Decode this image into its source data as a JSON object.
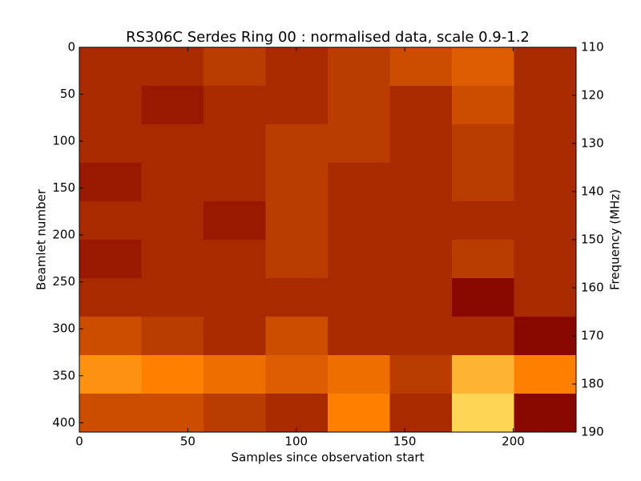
{
  "chart_data": {
    "type": "heatmap",
    "title": "RS306C Serdes Ring 00 : normalised data, scale 0.9-1.2",
    "x_label": "Samples since observation start",
    "y_label": "Beamlet number",
    "y2_label": "Frequency (MHz)",
    "colormap": "afmhot",
    "clim": [
      0.9,
      1.2
    ],
    "xlim": [
      0,
      229
    ],
    "ylim": [
      410,
      0
    ],
    "y2lim": [
      190,
      110
    ],
    "xticks": [
      0,
      50,
      100,
      150,
      200
    ],
    "yticks": [
      0,
      50,
      100,
      150,
      200,
      250,
      300,
      350,
      400
    ],
    "y2ticks": [
      110,
      120,
      130,
      140,
      150,
      160,
      170,
      180,
      190
    ],
    "z": [
      [
        1.0,
        1.0,
        1.01,
        1.0,
        1.01,
        1.02,
        1.03,
        1.0
      ],
      [
        1.0,
        0.99,
        1.0,
        1.0,
        1.01,
        1.0,
        1.02,
        1.0
      ],
      [
        1.0,
        1.0,
        1.0,
        1.01,
        1.01,
        1.0,
        1.01,
        1.0
      ],
      [
        0.99,
        1.0,
        1.0,
        1.01,
        1.0,
        1.0,
        1.01,
        1.0
      ],
      [
        1.0,
        1.0,
        0.99,
        1.01,
        1.0,
        1.0,
        1.0,
        1.0
      ],
      [
        0.99,
        1.0,
        1.0,
        1.01,
        1.0,
        1.0,
        1.01,
        1.0
      ],
      [
        1.0,
        1.0,
        1.0,
        1.0,
        1.0,
        1.0,
        0.98,
        1.0
      ],
      [
        1.02,
        1.01,
        1.0,
        1.02,
        1.0,
        1.0,
        1.0,
        0.98
      ],
      [
        1.06,
        1.05,
        1.04,
        1.03,
        1.04,
        1.01,
        1.08,
        1.05
      ],
      [
        1.02,
        1.02,
        1.01,
        1.0,
        1.05,
        1.0,
        1.1,
        0.98
      ]
    ]
  }
}
